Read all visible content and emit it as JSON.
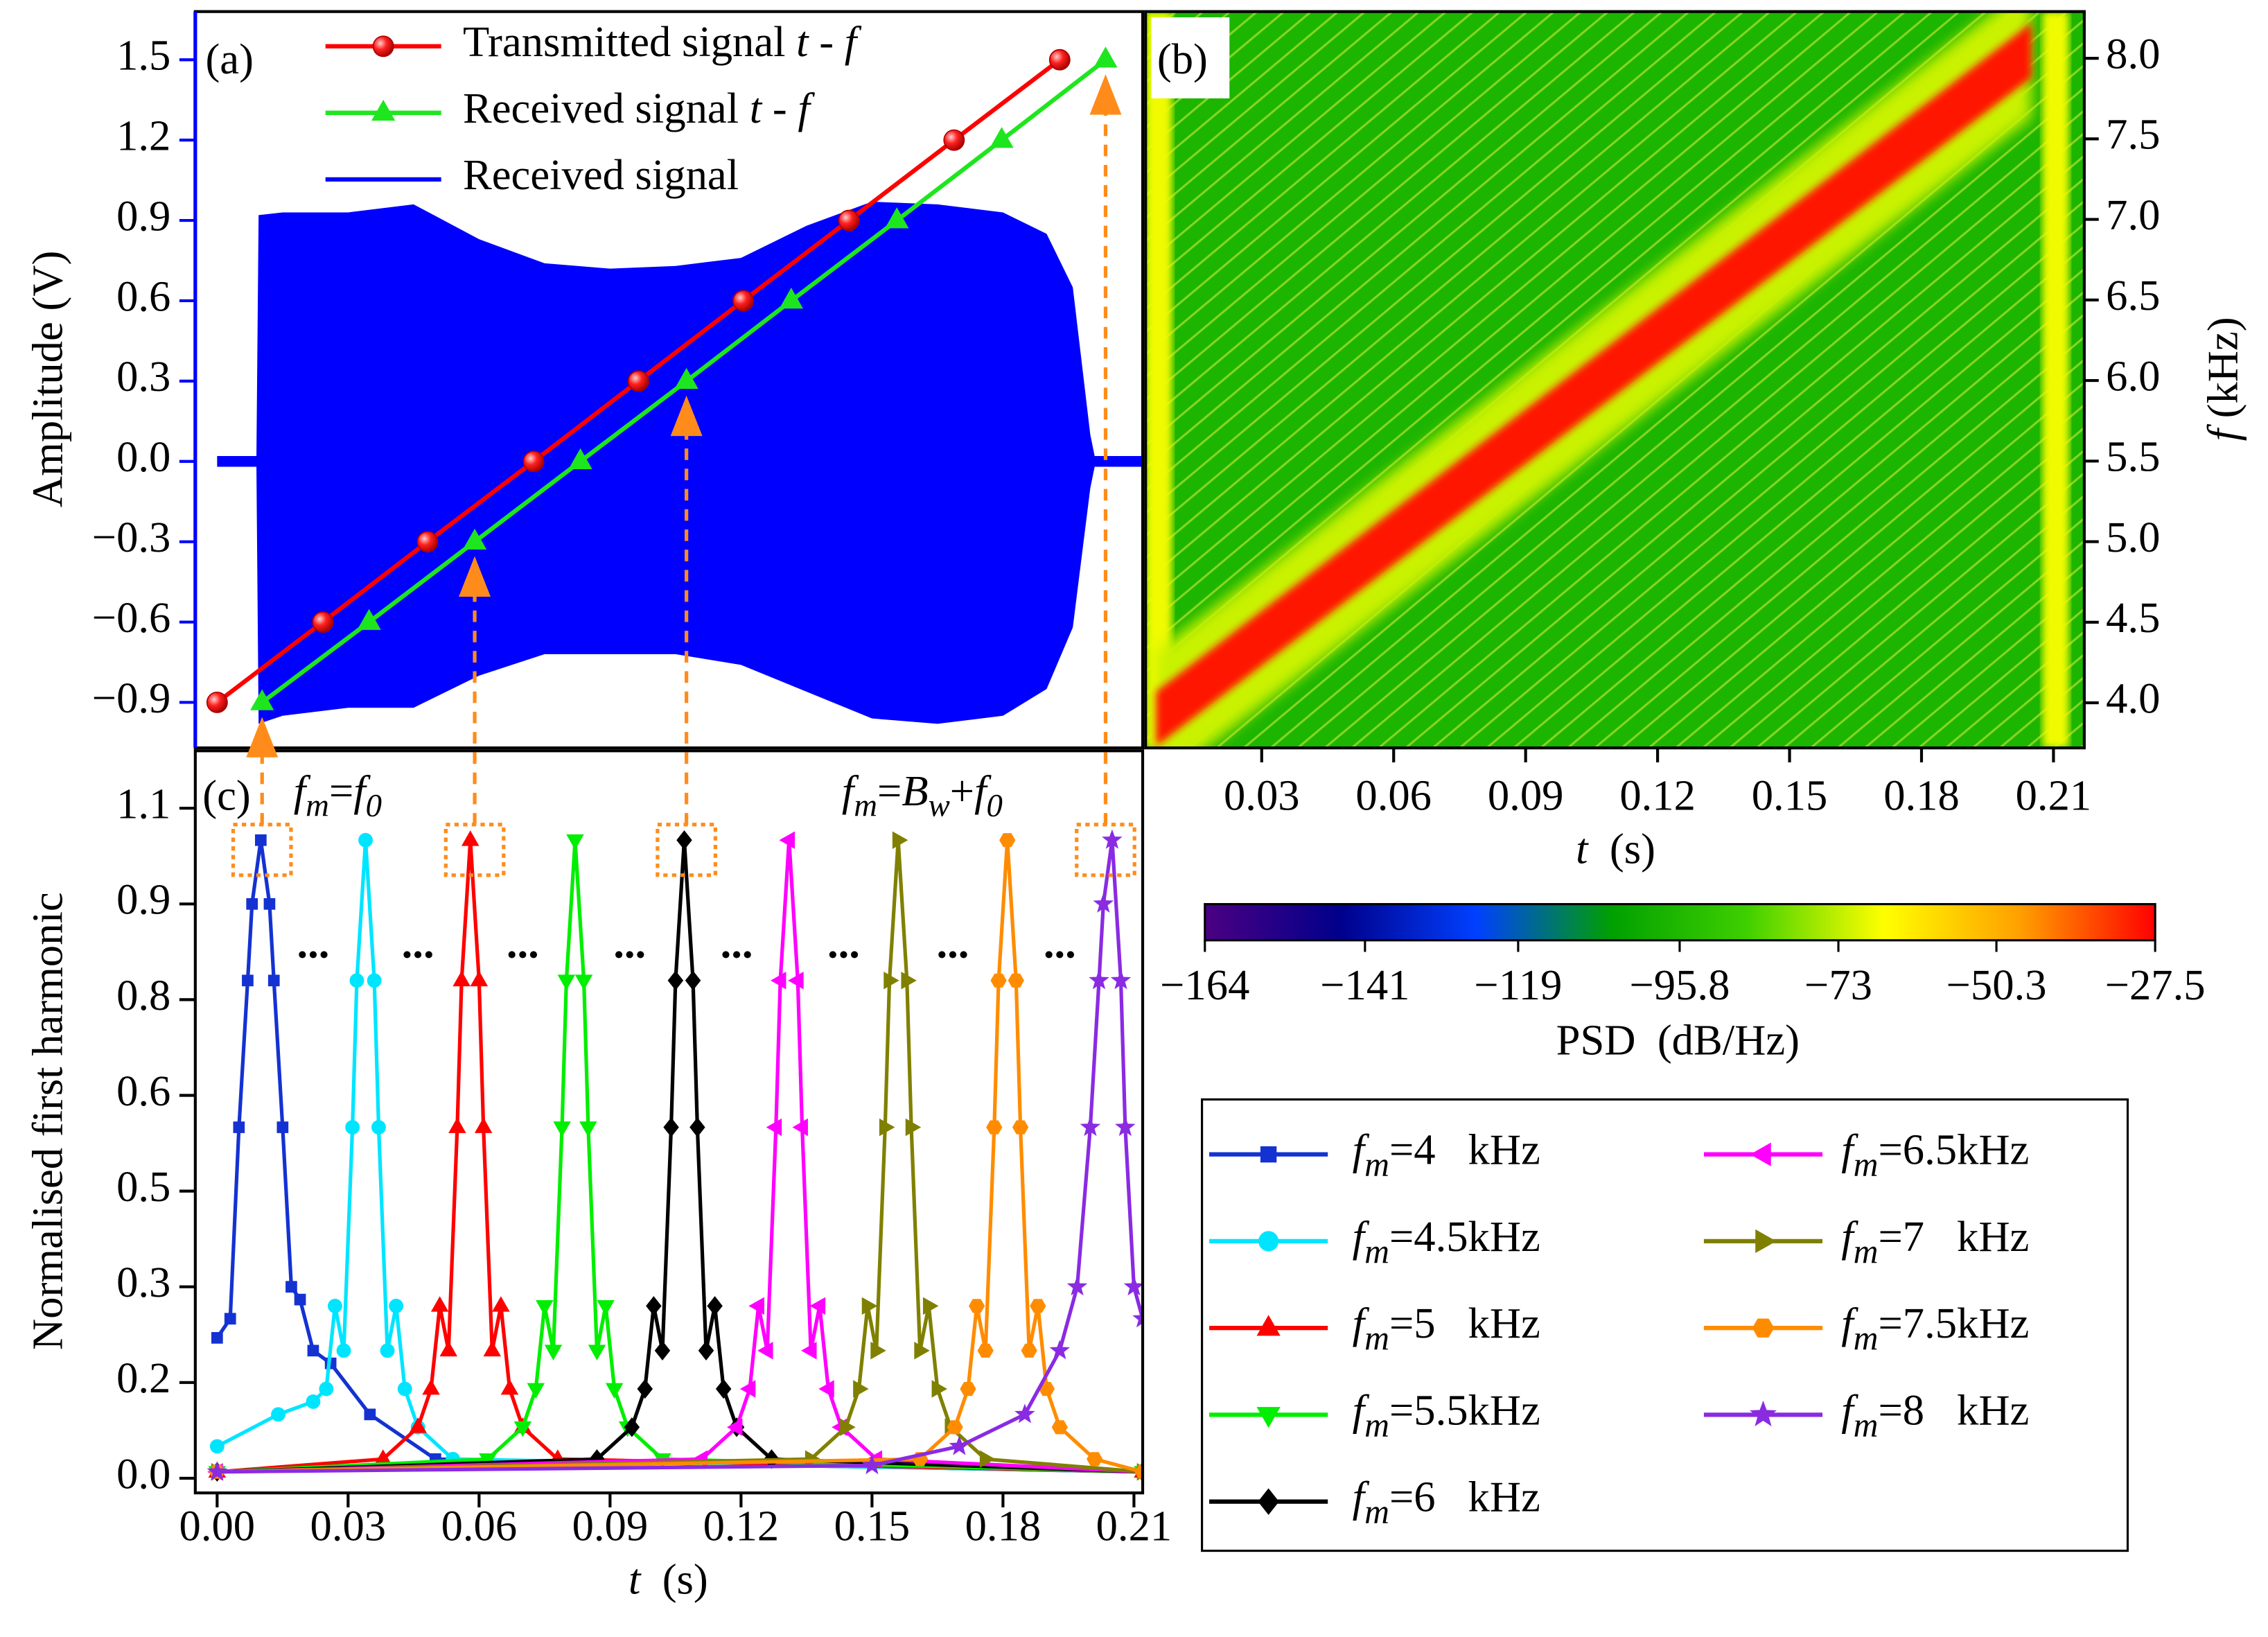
{
  "chart_data": [
    {
      "type": "line",
      "panel_label": "(a)",
      "ylabel": "Amplitude (V)",
      "axis_color": "#0000ff",
      "xlim": [
        -0.005,
        0.212
      ],
      "ylim": [
        -1.07,
        1.68
      ],
      "yticks": [
        {
          "value": -0.9,
          "label": "−0.9"
        },
        {
          "value": -0.6,
          "label": "−0.6"
        },
        {
          "value": -0.3,
          "label": "−0.3"
        },
        {
          "value": 0,
          "label": "0.0"
        },
        0.3,
        0.6,
        0.9,
        1.2,
        1.5
      ],
      "legend": "upper left",
      "series": [
        {
          "name": [
            "Transmitted signal ",
            "t",
            " - ",
            "f"
          ],
          "color": "#ff0000",
          "marker": "sphere",
          "x": [
            0,
            0.0242,
            0.0482,
            0.0725,
            0.0965,
            0.1205,
            0.1447,
            0.1688,
            0.193
          ],
          "values": [
            -0.9,
            -0.6,
            -0.3,
            0,
            0.3,
            0.6,
            0.9,
            1.2,
            1.5
          ]
        },
        {
          "name": [
            "Received signal ",
            "t",
            " - ",
            "f"
          ],
          "color": "#1ee61e",
          "marker": "triangle-up",
          "x": [
            0.0103,
            0.0348,
            0.059,
            0.0832,
            0.1075,
            0.1315,
            0.1557,
            0.1797,
            0.2035
          ],
          "values": [
            -0.9,
            -0.6,
            -0.3,
            0,
            0.3,
            0.6,
            0.9,
            1.2,
            1.5
          ]
        },
        {
          "name": [
            "Received signal"
          ],
          "type": "area",
          "color": "#0000ff",
          "x": [
            0,
            0.009,
            0.0095,
            0.015,
            0.03,
            0.045,
            0.06,
            0.075,
            0.09,
            0.105,
            0.12,
            0.135,
            0.15,
            0.165,
            0.18,
            0.19,
            0.196,
            0.2,
            0.201,
            0.212
          ],
          "values": [
            0.02,
            0.02,
            0.92,
            0.93,
            0.93,
            0.96,
            0.83,
            0.74,
            0.72,
            0.73,
            0.76,
            0.88,
            0.97,
            0.96,
            0.93,
            0.85,
            0.65,
            0.1,
            0.02,
            0.02
          ],
          "lower": [
            -0.02,
            -0.02,
            -0.98,
            -0.95,
            -0.92,
            -0.92,
            -0.8,
            -0.72,
            -0.72,
            -0.72,
            -0.76,
            -0.86,
            -0.96,
            -0.98,
            -0.95,
            -0.85,
            -0.62,
            -0.1,
            -0.02,
            -0.02
          ]
        }
      ]
    },
    {
      "type": "heatmap",
      "panel_label": "(b)",
      "xlabel": [
        "t",
        "  (s)"
      ],
      "ylabel": [
        "f",
        " (kHz)"
      ],
      "xlim": [
        0.0036,
        0.217
      ],
      "ylim": [
        3.72,
        8.29
      ],
      "xticks": [
        0.03,
        0.06,
        0.09,
        0.12,
        0.15,
        0.18,
        0.21
      ],
      "yticks": [
        {
          "value": 4,
          "label": "4.0"
        },
        4.5,
        {
          "value": 5,
          "label": "5.0"
        },
        5.5,
        {
          "value": 6,
          "label": "6.0"
        },
        6.5,
        {
          "value": 7,
          "label": "7.0"
        },
        7.5,
        {
          "value": 8,
          "label": "8.0"
        }
      ],
      "background_psd": -97,
      "halo": {
        "halfwidth": 0.42,
        "psd": -72
      },
      "ridge": {
        "t": [
          0.006,
          0.205
        ],
        "f": [
          3.9,
          8.05
        ],
        "halfwidth": 0.17,
        "psd": -30
      },
      "edges": {
        "t": [
          0.0036,
          0.2075
        ],
        "width": 0.006,
        "psd": -68
      },
      "colorbar": {
        "label": "PSD  (dB/Hz)",
        "clim": [
          -164,
          -27.5
        ],
        "ticks": [
          {
            "value": -164,
            "label": "−164"
          },
          {
            "value": -141,
            "label": "−141"
          },
          {
            "value": -119,
            "label": "−119"
          },
          {
            "value": -95.8,
            "label": "−95.8"
          },
          {
            "value": -73,
            "label": "−73"
          },
          {
            "value": -50.3,
            "label": "−50.3"
          },
          {
            "value": -27.5,
            "label": "−27.5"
          }
        ],
        "colors": [
          "#4b0082",
          "#00008b",
          "#0040ff",
          "#00a000",
          "#40d000",
          "#ffff00",
          "#ffa000",
          "#ff0000"
        ]
      }
    },
    {
      "type": "line",
      "panel_label": "(c)",
      "ylabel": "Normalised first harmonic",
      "xlabel": [
        "t",
        "  (s)"
      ],
      "xlim": [
        -0.005,
        0.212
      ],
      "ylim": [
        -0.023,
        1.14
      ],
      "xticks": [
        {
          "value": 0,
          "label": "0.00"
        },
        0.03,
        0.06,
        0.09,
        0.12,
        0.15,
        0.18,
        0.21
      ],
      "yticks": [
        {
          "value": 0,
          "label": "0.0"
        },
        {
          "value": 0.15,
          "label": "0.2"
        },
        0.3,
        {
          "value": 0.45,
          "label": "0.5"
        },
        0.6,
        {
          "value": 0.75,
          "label": "0.8"
        },
        0.9,
        {
          "value": 1.05,
          "label": "1.1"
        }
      ],
      "annotations": [
        [
          "f",
          "m",
          "=",
          "f",
          "0"
        ],
        [
          "f",
          "m",
          "=",
          "B",
          "w",
          "+",
          "f",
          "0"
        ]
      ],
      "highlight_t": [
        0.0103,
        0.059,
        0.1075,
        0.2035
      ],
      "highlight_color": "#ff8c1a",
      "gap_label": "...",
      "legend": "lower right",
      "series": [
        {
          "name": [
            "f",
            "m",
            "=4   kHz"
          ],
          "color": "#1432d2",
          "marker": "square",
          "x": [
            0,
            0.003,
            0.005,
            0.007,
            0.008,
            0.01,
            0.012,
            0.013,
            0.015,
            0.017,
            0.019,
            0.022,
            0.026,
            0.035,
            0.05,
            0.212
          ],
          "values": [
            0.22,
            0.25,
            0.55,
            0.78,
            0.9,
            1.0,
            0.9,
            0.78,
            0.55,
            0.3,
            0.28,
            0.2,
            0.18,
            0.1,
            0.03,
            0.01
          ]
        },
        {
          "name": [
            "f",
            "m",
            "=4.5kHz"
          ],
          "color": "#00e5ff",
          "marker": "circle",
          "x": [
            0,
            0.014,
            0.022,
            0.025,
            0.027,
            0.029,
            0.031,
            0.032,
            0.034,
            0.036,
            0.037,
            0.039,
            0.041,
            0.043,
            0.046,
            0.054,
            0.212
          ],
          "values": [
            0.05,
            0.1,
            0.12,
            0.14,
            0.27,
            0.2,
            0.55,
            0.78,
            1.0,
            0.78,
            0.55,
            0.2,
            0.27,
            0.14,
            0.08,
            0.03,
            0.01
          ]
        },
        {
          "name": [
            "f",
            "m",
            "=5   kHz"
          ],
          "color": "#ff0000",
          "marker": "triangle-up",
          "x": [
            0,
            0.038,
            0.046,
            0.049,
            0.051,
            0.053,
            0.055,
            0.056,
            0.058,
            0.06,
            0.061,
            0.063,
            0.065,
            0.067,
            0.07,
            0.078,
            0.212
          ],
          "values": [
            0.01,
            0.03,
            0.08,
            0.14,
            0.27,
            0.2,
            0.55,
            0.78,
            1.0,
            0.78,
            0.55,
            0.2,
            0.27,
            0.14,
            0.08,
            0.03,
            0.01
          ]
        },
        {
          "name": [
            "f",
            "m",
            "=5.5kHz"
          ],
          "color": "#00ee00",
          "marker": "triangle-down",
          "x": [
            0,
            0.062,
            0.07,
            0.073,
            0.075,
            0.077,
            0.079,
            0.08,
            0.082,
            0.084,
            0.085,
            0.087,
            0.089,
            0.091,
            0.094,
            0.102,
            0.212
          ],
          "values": [
            0.01,
            0.03,
            0.08,
            0.14,
            0.27,
            0.2,
            0.55,
            0.78,
            1.0,
            0.78,
            0.55,
            0.2,
            0.27,
            0.14,
            0.08,
            0.03,
            0.01
          ]
        },
        {
          "name": [
            "f",
            "m",
            "=6   kHz"
          ],
          "color": "#000000",
          "marker": "diamond",
          "x": [
            0,
            0.087,
            0.095,
            0.098,
            0.1,
            0.102,
            0.104,
            0.105,
            0.107,
            0.109,
            0.11,
            0.112,
            0.114,
            0.116,
            0.119,
            0.127,
            0.212
          ],
          "values": [
            0.01,
            0.03,
            0.08,
            0.14,
            0.27,
            0.2,
            0.55,
            0.78,
            1.0,
            0.78,
            0.55,
            0.2,
            0.27,
            0.14,
            0.08,
            0.03,
            0.01
          ]
        },
        {
          "name": [
            "f",
            "m",
            "=6.5kHz"
          ],
          "color": "#ff00ff",
          "marker": "triangle-left",
          "x": [
            0,
            0.111,
            0.119,
            0.122,
            0.124,
            0.126,
            0.128,
            0.129,
            0.131,
            0.133,
            0.134,
            0.136,
            0.138,
            0.14,
            0.143,
            0.151,
            0.212
          ],
          "values": [
            0.01,
            0.03,
            0.08,
            0.14,
            0.27,
            0.2,
            0.55,
            0.78,
            1.0,
            0.78,
            0.55,
            0.2,
            0.27,
            0.14,
            0.08,
            0.03,
            0.01
          ]
        },
        {
          "name": [
            "f",
            "m",
            "=7   kHz"
          ],
          "color": "#808000",
          "marker": "triangle-right",
          "x": [
            0,
            0.136,
            0.144,
            0.147,
            0.149,
            0.151,
            0.153,
            0.154,
            0.156,
            0.158,
            0.159,
            0.161,
            0.163,
            0.165,
            0.168,
            0.176,
            0.212
          ],
          "values": [
            0.01,
            0.03,
            0.08,
            0.14,
            0.27,
            0.2,
            0.55,
            0.78,
            1.0,
            0.78,
            0.55,
            0.2,
            0.27,
            0.14,
            0.08,
            0.03,
            0.01
          ]
        },
        {
          "name": [
            "f",
            "m",
            "=7.5kHz"
          ],
          "color": "#ff8c00",
          "marker": "hexagon",
          "x": [
            0,
            0.161,
            0.169,
            0.172,
            0.174,
            0.176,
            0.178,
            0.179,
            0.181,
            0.183,
            0.184,
            0.186,
            0.188,
            0.19,
            0.193,
            0.201,
            0.212
          ],
          "values": [
            0.01,
            0.03,
            0.08,
            0.14,
            0.27,
            0.2,
            0.55,
            0.78,
            1.0,
            0.78,
            0.55,
            0.2,
            0.27,
            0.14,
            0.08,
            0.03,
            0.01
          ]
        },
        {
          "name": [
            "f",
            "m",
            "=8   kHz"
          ],
          "color": "#8a2be2",
          "marker": "star",
          "x": [
            0,
            0.15,
            0.17,
            0.185,
            0.193,
            0.197,
            0.2,
            0.202,
            0.203,
            0.205,
            0.207,
            0.208,
            0.21,
            0.212
          ],
          "values": [
            0.01,
            0.02,
            0.05,
            0.1,
            0.2,
            0.3,
            0.55,
            0.78,
            0.9,
            1.0,
            0.78,
            0.55,
            0.3,
            0.25
          ]
        }
      ]
    }
  ]
}
